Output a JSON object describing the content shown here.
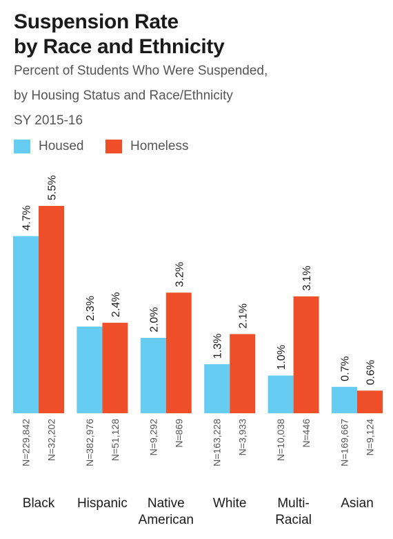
{
  "header": {
    "title_line1": "Suspension Rate",
    "title_line2": "by Race and Ethnicity",
    "subtitle_line1": "Percent of Students Who Were Suspended,",
    "subtitle_line2": "by Housing Status and Race/Ethnicity",
    "subtitle_line3": "SY 2015-16"
  },
  "chart_data": {
    "type": "bar",
    "categories": [
      [
        "Black"
      ],
      [
        "Hispanic"
      ],
      [
        "Native",
        "American"
      ],
      [
        "White"
      ],
      [
        "Multi-",
        "Racial"
      ],
      [
        "Asian"
      ]
    ],
    "series": [
      {
        "name": "Housed",
        "color": "#66ccf2",
        "values": [
          4.7,
          2.3,
          2.0,
          1.3,
          1.0,
          0.7
        ],
        "labels": [
          "4.7%",
          "2.3%",
          "2.0%",
          "1.3%",
          "1.0%",
          "0.7%"
        ],
        "n_labels": [
          "N=229,842",
          "N=382,976",
          "N=9,292",
          "N=163,228",
          "N=10,038",
          "N=169,667"
        ]
      },
      {
        "name": "Homeless",
        "color": "#ef4f28",
        "values": [
          5.5,
          2.4,
          3.2,
          2.1,
          3.1,
          0.6
        ],
        "labels": [
          "5.5%",
          "2.4%",
          "3.2%",
          "2.1%",
          "3.1%",
          "0.6%"
        ],
        "n_labels": [
          "N=32,202",
          "N=51,128",
          "N=869",
          "N=3,933",
          "N=446",
          "N=9,124"
        ]
      }
    ],
    "ylim": [
      0,
      5.5
    ],
    "grid": false,
    "legend": "top-left"
  }
}
